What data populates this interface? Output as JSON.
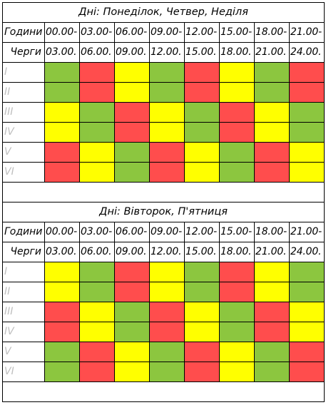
{
  "colors": {
    "green": "#8cc63f",
    "red": "#ff4d4d",
    "yellow": "#ffff00",
    "border": "#000000",
    "group_label": "#bfbfbf"
  },
  "schedule1": {
    "title": "Дні: Понеділок, Четвер, Неділя",
    "hours_label": "Години",
    "queues_label": "Черги",
    "hours_start": [
      "00.00-",
      "03.00-",
      "06.00-",
      "09.00-",
      "12.00-",
      "15.00-",
      "18.00-",
      "21.00-"
    ],
    "hours_end": [
      "03.00.",
      "06.00.",
      "09.00.",
      "12.00.",
      "15.00.",
      "18.00.",
      "21.00.",
      "24.00."
    ],
    "rows": [
      {
        "group": "I",
        "cells": [
          "green",
          "red",
          "yellow",
          "green",
          "red",
          "yellow",
          "green",
          "red"
        ]
      },
      {
        "group": "II",
        "cells": [
          "green",
          "red",
          "yellow",
          "green",
          "red",
          "yellow",
          "green",
          "red"
        ]
      },
      {
        "group": "III",
        "cells": [
          "yellow",
          "green",
          "red",
          "yellow",
          "green",
          "red",
          "yellow",
          "green"
        ]
      },
      {
        "group": "IV",
        "cells": [
          "yellow",
          "green",
          "red",
          "yellow",
          "green",
          "red",
          "yellow",
          "green"
        ]
      },
      {
        "group": "V",
        "cells": [
          "red",
          "yellow",
          "green",
          "red",
          "yellow",
          "green",
          "red",
          "yellow"
        ]
      },
      {
        "group": "VI",
        "cells": [
          "red",
          "yellow",
          "green",
          "red",
          "yellow",
          "green",
          "red",
          "yellow"
        ]
      }
    ]
  },
  "schedule2": {
    "title": "Дні: Вівторок, П'ятниця",
    "hours_label": "Години",
    "queues_label": "Черги",
    "hours_start": [
      "00.00-",
      "03.00-",
      "06.00-",
      "09.00-",
      "12.00-",
      "15.00-",
      "18.00-",
      "21.00-"
    ],
    "hours_end": [
      "03.00.",
      "06.00.",
      "09.00.",
      "12.00.",
      "15.00.",
      "18.00.",
      "21.00.",
      "24.00."
    ],
    "rows": [
      {
        "group": "I",
        "cells": [
          "yellow",
          "green",
          "red",
          "yellow",
          "green",
          "red",
          "yellow",
          "green"
        ]
      },
      {
        "group": "II",
        "cells": [
          "yellow",
          "green",
          "red",
          "yellow",
          "green",
          "red",
          "yellow",
          "green"
        ]
      },
      {
        "group": "III",
        "cells": [
          "red",
          "yellow",
          "green",
          "red",
          "yellow",
          "green",
          "red",
          "yellow"
        ]
      },
      {
        "group": "IV",
        "cells": [
          "red",
          "yellow",
          "green",
          "red",
          "yellow",
          "green",
          "red",
          "yellow"
        ]
      },
      {
        "group": "V",
        "cells": [
          "green",
          "red",
          "yellow",
          "green",
          "red",
          "yellow",
          "green",
          "red"
        ]
      },
      {
        "group": "VI",
        "cells": [
          "green",
          "red",
          "yellow",
          "green",
          "red",
          "yellow",
          "green",
          "red"
        ]
      }
    ]
  }
}
